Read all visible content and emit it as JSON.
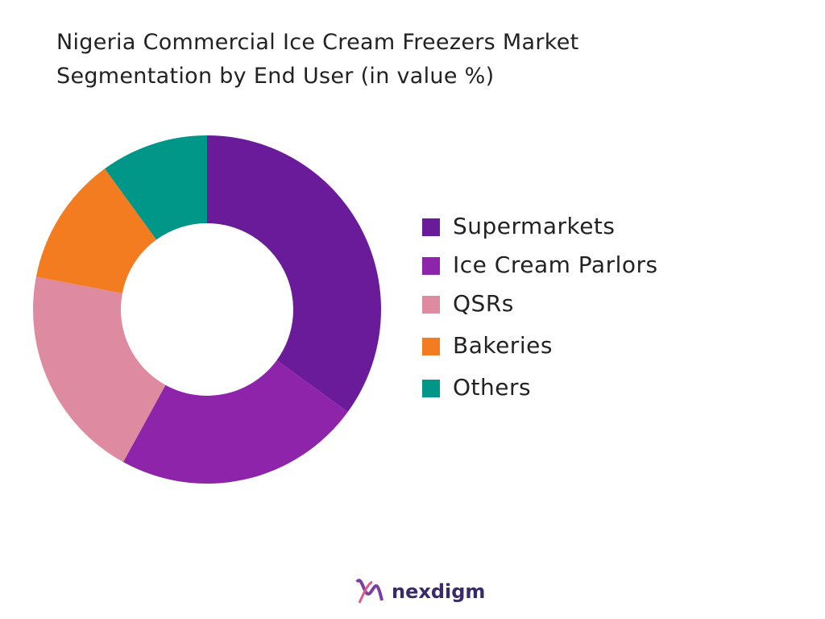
{
  "chart_data": {
    "type": "donut",
    "title": "Nigeria Commercial Ice Cream Freezers Market Segmentation by End User (in value %)",
    "categories": [
      "Supermarkets",
      "Ice Cream Parlors",
      "QSRs",
      "Bakeries",
      "Others"
    ],
    "values": [
      35,
      23,
      20,
      12,
      10
    ],
    "colors": [
      "#6a1b9a",
      "#8e24aa",
      "#de8aa0",
      "#f47c20",
      "#009688"
    ],
    "legend": "right"
  },
  "footer": {
    "brand": "nexdigm"
  }
}
